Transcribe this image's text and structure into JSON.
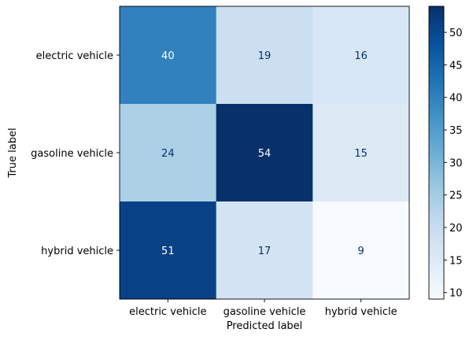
{
  "chart_data": {
    "type": "heatmap",
    "title": "",
    "xlabel": "Predicted label",
    "ylabel": "True label",
    "x_categories": [
      "electric vehicle",
      "gasoline vehicle",
      "hybrid vehicle"
    ],
    "y_categories": [
      "electric vehicle",
      "gasoline vehicle",
      "hybrid vehicle"
    ],
    "values": [
      [
        40,
        19,
        16
      ],
      [
        24,
        54,
        15
      ],
      [
        51,
        17,
        9
      ]
    ],
    "colormap": "Blues",
    "colorbar": {
      "min": 9,
      "max": 54,
      "ticks": [
        "10",
        "15",
        "20",
        "25",
        "30",
        "35",
        "40",
        "45",
        "50"
      ]
    },
    "grid": false,
    "legend": "colorbar-right"
  }
}
